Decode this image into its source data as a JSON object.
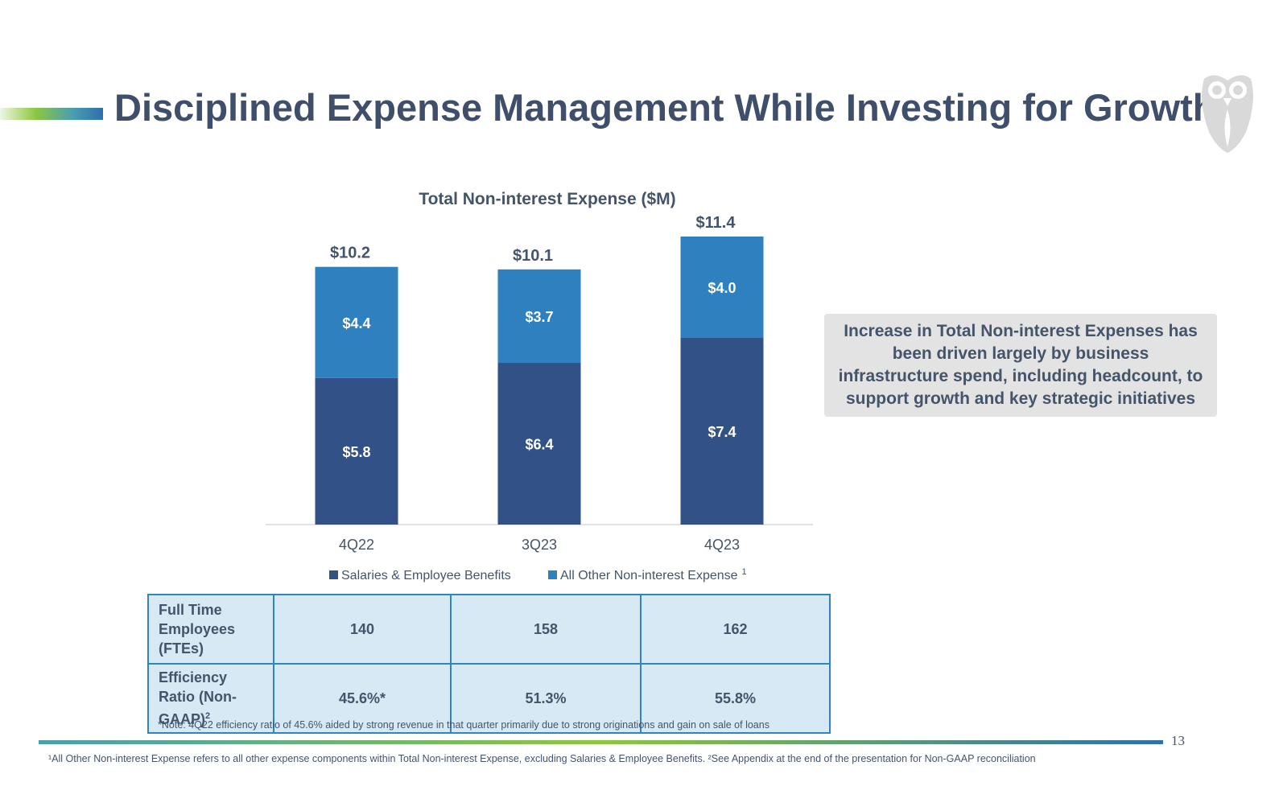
{
  "page": {
    "title": "Disciplined Expense Management While Investing for Growth",
    "page_number": "13"
  },
  "colors": {
    "salaries": "#325186",
    "other": "#2e80bf",
    "text": "#44546a"
  },
  "chart_data": {
    "type": "bar",
    "stacked": true,
    "title": "Total Non-interest Expense ($M)",
    "categories": [
      "4Q22",
      "3Q23",
      "4Q23"
    ],
    "series": [
      {
        "name": "Salaries & Employee Benefits",
        "values": [
          5.8,
          6.4,
          7.4
        ],
        "labels": [
          "$5.8",
          "$6.4",
          "$7.4"
        ]
      },
      {
        "name": "All Other Non-interest Expense",
        "legend_sup": "1",
        "values": [
          4.4,
          3.7,
          4.0
        ],
        "labels": [
          "$4.4",
          "$3.7",
          "$4.0"
        ]
      }
    ],
    "totals": [
      10.2,
      10.1,
      11.4
    ],
    "total_labels": [
      "$10.2",
      "$10.1",
      "$11.4"
    ],
    "ylim": [
      0,
      11.4
    ],
    "legend_position": "bottom",
    "grid": false
  },
  "callout": {
    "text": "Increase in Total Non-interest Expenses has been driven largely by business infrastructure spend, including headcount, to support growth and key strategic initiatives"
  },
  "table": {
    "rows": [
      {
        "label": "Full Time Employees (FTEs)",
        "sup": "",
        "values": [
          "140",
          "158",
          "162"
        ]
      },
      {
        "label": "Efficiency Ratio (Non-GAAP)",
        "sup": "2",
        "values": [
          "45.6%*",
          "51.3%",
          "55.8%"
        ]
      }
    ]
  },
  "note": "*Note: 4Q22 efficiency ratio of 45.6% aided by strong revenue in that quarter primarily due to strong originations and gain on sale of loans",
  "footnote": "¹All Other Non-interest Expense refers to all other expense components within Total Non-interest Expense, excluding Salaries & Employee Benefits. ²See Appendix at the end of the presentation for Non-GAAP reconciliation"
}
